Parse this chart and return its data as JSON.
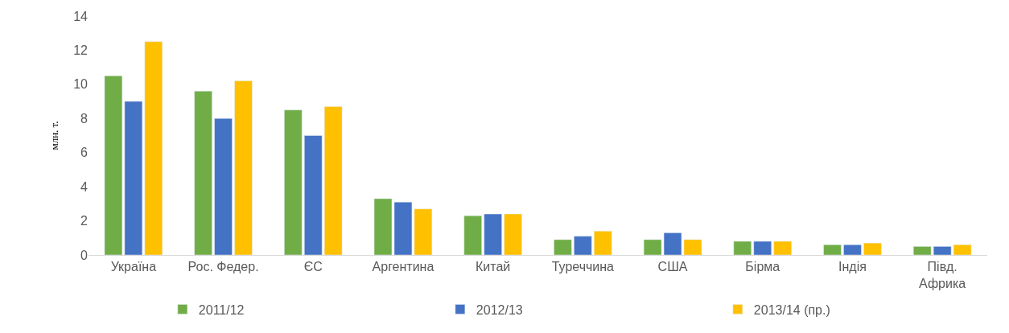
{
  "chart_data": {
    "type": "bar",
    "ylabel": "млн. т.",
    "categories": [
      "Україна",
      "Рос. Федер.",
      "ЄС",
      "Аргентина",
      "Китай",
      "Туреччина",
      "США",
      "Бірма",
      "Індія",
      "Півд. Африка"
    ],
    "series": [
      {
        "name": "2011/12",
        "color": "#70ad47",
        "values": [
          10.5,
          9.6,
          8.5,
          3.3,
          2.3,
          0.9,
          0.9,
          0.8,
          0.6,
          0.5
        ]
      },
      {
        "name": "2012/13",
        "color": "#4472c4",
        "values": [
          9.0,
          8.0,
          7.0,
          3.1,
          2.4,
          1.1,
          1.3,
          0.8,
          0.6,
          0.5
        ]
      },
      {
        "name": "2013/14 (пр.)",
        "color": "#ffc000",
        "values": [
          12.5,
          10.2,
          8.7,
          2.7,
          2.4,
          1.4,
          0.9,
          0.8,
          0.7,
          0.6
        ]
      }
    ],
    "ylim": [
      0,
      14
    ],
    "yticks": [
      0,
      2,
      4,
      6,
      8,
      10,
      12,
      14
    ],
    "legend": "bottom"
  }
}
